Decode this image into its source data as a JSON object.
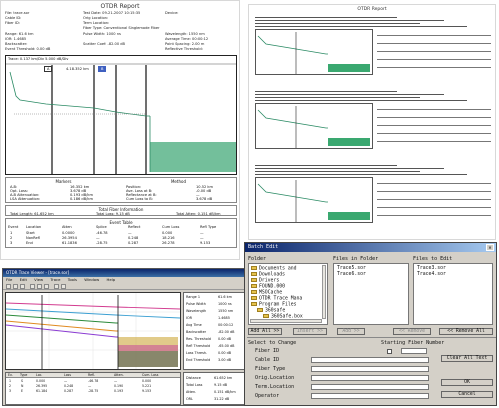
{
  "report_main": {
    "title": "OTDR Report",
    "header_lines": [
      "File: trace.sor",
      "Test Date: 09-21-2007 10:15:35",
      "Device:",
      "Cable ID:",
      "Orig Location:",
      "Fiber ID:",
      "Term Location:",
      "Fiber Type: Conventional Singlemode Fiber",
      "Range: 61.6 km",
      "Pulse Width: 1000 ns",
      "Wavelength: 1550 nm",
      "IOR: 1.4685",
      "Average Time: 00:00:12",
      "Backscatter:",
      "Scatter Coef: -82.00 dB",
      "Point Spacing: 2.00 m",
      "Event Threshold: 0.00 dB",
      "Reflective Threshold:"
    ],
    "trace": {
      "scale_text": "Trace: 0.137 km/Div 5.000 dB/Div",
      "cursor_a": "A",
      "cursor_b": "B",
      "marker_text": "4.18.352 km"
    },
    "marker_section": {
      "title": "Markers",
      "left": [
        [
          "A-B:",
          "16.352 km"
        ],
        [
          "Opt. Loss:",
          "3.678 dB"
        ],
        [
          "A-B Attenuation:",
          "0.193 dB/km"
        ],
        [
          "LSA Attenuation:",
          "0.186 dB/km"
        ]
      ],
      "right_title": "Method",
      "right": [
        [
          "Position:",
          "10.52 km"
        ],
        [
          "Ave. Loss at B:",
          "-0.00 dB"
        ],
        [
          "Reflectance at B:",
          "—"
        ],
        [
          "Cum Loss to B:",
          "3.678 dB"
        ]
      ]
    },
    "totals": {
      "title": "Total Fiber Information",
      "length": "Total Length: 61.652 km",
      "loss": "Total Loss: 9.15 dB",
      "atten": "Total Atten: 0.151 dB/km"
    },
    "events": {
      "title": "Event Table",
      "headers": [
        "Event",
        "Location",
        "Atten",
        "Splice",
        "Reflect",
        "Cum Loss",
        "Refl Type"
      ],
      "rows": [
        [
          "1",
          "Start",
          "0.0000",
          "-46.78",
          "—",
          "0.000",
          "—"
        ],
        [
          "2",
          "NonRefl",
          "26.3954",
          "—",
          "0.248",
          "18.216",
          "—"
        ],
        [
          "3",
          "End",
          "61.1836",
          "-28.75",
          "0.287",
          "26.278",
          "9.153"
        ]
      ]
    }
  },
  "report_thumb": {
    "title": "OTDR Report"
  },
  "app_window": {
    "title": "OTDR Trace Viewer - [trace.sor]",
    "menu": [
      "File",
      "Edit",
      "View",
      "Trace",
      "Tools",
      "Window",
      "Help"
    ],
    "side_rows": [
      [
        "Range 1",
        "61.6 km"
      ],
      [
        "Pulse Width",
        "1000 ns"
      ],
      [
        "Wavelength",
        "1550 nm"
      ],
      [
        "IOR",
        "1.4685"
      ],
      [
        "Avg Time",
        "00:00:12"
      ],
      [
        "Backscatter",
        "-82.00 dB"
      ],
      [
        "Res. Threshold",
        "0.00 dB"
      ],
      [
        "Refl Threshold",
        "-65.00 dB"
      ],
      [
        "Loss Thresh.",
        "0.00 dB"
      ],
      [
        "End Threshold",
        "3.00 dB"
      ]
    ],
    "event_headers": [
      "Ev.",
      "Type",
      "Loc.",
      "Loss",
      "Refl.",
      "Atten.",
      "Cum. Loss"
    ],
    "event_rows": [
      [
        "1",
        "S",
        "0.000",
        "—",
        "-46.78",
        "—",
        "0.000"
      ],
      [
        "2",
        "N",
        "26.395",
        "0.248",
        "—",
        "0.190",
        "5.221"
      ],
      [
        "3",
        "E",
        "61.184",
        "0.287",
        "-28.75",
        "0.193",
        "9.153"
      ]
    ],
    "info_rows": [
      [
        "Distance",
        "61.652 km"
      ],
      [
        "Total Loss",
        "9.15 dB"
      ],
      [
        "Atten.",
        "0.151 dB/km"
      ],
      [
        "ORL",
        "31.22 dB"
      ]
    ]
  },
  "dialog": {
    "title": "Batch Edit",
    "close_glyph": "✕",
    "label_folders": "Folder",
    "label_files_in_folder": "Files in Folder",
    "label_files_to_edit": "Files to Edit",
    "folders": [
      "Documents and",
      "Downloads",
      "Drivers",
      "FOUND.000",
      "MSOCache",
      "OTDR Trace Mana",
      "Program Files",
      "360safe",
      "360Safe.box"
    ],
    "files_in_folder": [
      "Trace5.sor",
      "Trace6.sor"
    ],
    "files_to_edit": [
      "Trace3.sor",
      "Trace4.sor"
    ],
    "buttons": {
      "add_all": "Add All >>",
      "insert": "Insert >>",
      "add": "Add >>",
      "remove": "<< Remove",
      "remove_all": "<< Remove All",
      "clear_all_text": "Clear All Text",
      "ok": "OK",
      "cancel": "Cancel"
    },
    "select_to_change": "Select to Change",
    "starting_fiber_number": "Starting Fiber Number",
    "fields": [
      "Fiber ID",
      "Cable ID",
      "Fiber Type",
      "Orig.Location",
      "Term.Location",
      "Operator"
    ]
  }
}
